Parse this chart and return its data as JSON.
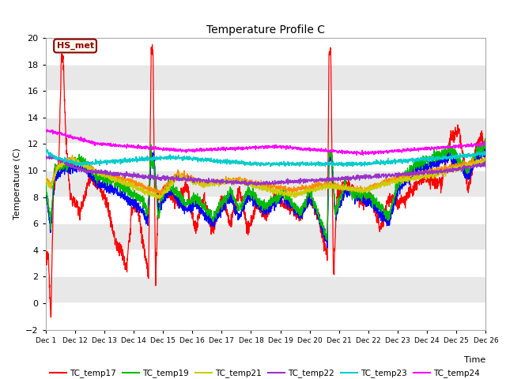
{
  "title": "Temperature Profile C",
  "xlabel": "Time",
  "ylabel": "Temperature (C)",
  "ylim": [
    -2,
    20
  ],
  "xlim": [
    0,
    25
  ],
  "annotation_text": "HS_met",
  "annotation_color": "#8B0000",
  "annotation_bg": "#FFFFF0",
  "series_colors": {
    "TC_temp17": "#FF0000",
    "TC_temp18": "#0000FF",
    "TC_temp19": "#00BB00",
    "TC_temp20": "#FF8C00",
    "TC_temp21": "#CCCC00",
    "TC_temp22": "#9932CC",
    "TC_temp23": "#00CCCC",
    "TC_temp24": "#FF00FF"
  },
  "bg_light": "#E8E8E8",
  "bg_dark": "#D8D8D8",
  "grid_color": "#FFFFFF"
}
